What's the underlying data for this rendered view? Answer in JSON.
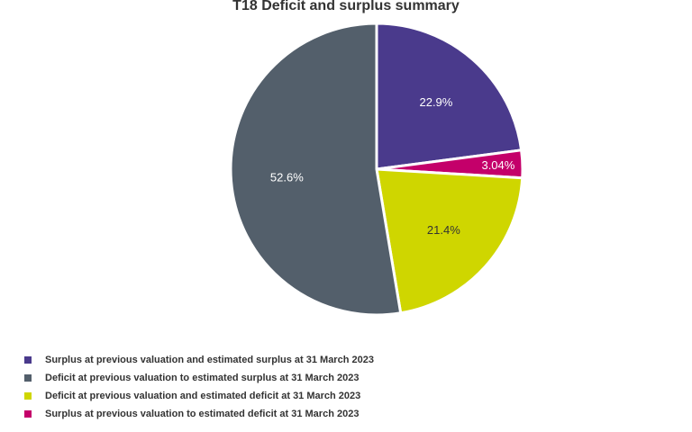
{
  "chart_data": {
    "type": "pie",
    "title": "T18 Deficit and surplus summary",
    "legend_position": "bottom-left",
    "slices": [
      {
        "name": "Surplus at previous valuation and estimated surplus at 31 March 2023",
        "value": 22.9,
        "label": "22.9%",
        "color": "#4a3a8c",
        "label_color": "#ffffff"
      },
      {
        "name": "Surplus at previous valuation to estimated deficit at 31 March 2023",
        "value": 3.04,
        "label": "3.04%",
        "color": "#c4006a",
        "label_color": "#ffffff"
      },
      {
        "name": "Deficit at previous valuation and estimated deficit at 31 March 2023",
        "value": 21.4,
        "label": "21.4%",
        "color": "#cfd600",
        "label_color": "#333333"
      },
      {
        "name": "Deficit at previous valuation to estimated surplus at 31 March 2023",
        "value": 52.6,
        "label": "52.6%",
        "color": "#535f6b",
        "label_color": "#ffffff"
      }
    ],
    "legend": [
      {
        "name": "Surplus at previous valuation and estimated surplus at 31 March 2023",
        "color": "#4a3a8c"
      },
      {
        "name": "Deficit at previous valuation to estimated surplus at 31 March 2023",
        "color": "#535f6b"
      },
      {
        "name": "Deficit at previous valuation and estimated deficit at 31 March 2023",
        "color": "#cfd600"
      },
      {
        "name": "Surplus at previous valuation to estimated deficit at 31 March 2023",
        "color": "#c4006a"
      }
    ]
  }
}
